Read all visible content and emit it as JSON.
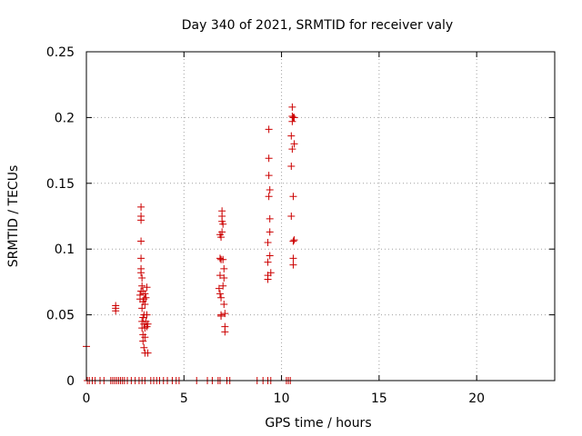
{
  "chart_data": {
    "type": "scatter",
    "title": "Day 340 of 2021, SRMTID for receiver valy",
    "xlabel": "GPS time / hours",
    "ylabel": "SRMTID / TECUs",
    "xlim": [
      0,
      24
    ],
    "ylim": [
      0,
      0.25
    ],
    "xticks": [
      0,
      5,
      10,
      15,
      20
    ],
    "xtick_labels": [
      "0",
      "5",
      "10",
      "15",
      "20"
    ],
    "yticks": [
      0,
      0.05,
      0.1,
      0.15,
      0.2,
      0.25
    ],
    "ytick_labels": [
      "0",
      "0.05",
      "0.1",
      "0.15",
      "0.2",
      "0.25"
    ],
    "grid": true,
    "marker": "+",
    "series": [
      {
        "name": "SRMTID",
        "color": "#cc0000",
        "x": [
          0.0,
          1.5,
          1.5,
          1.5,
          2.75,
          2.75,
          2.8,
          2.8,
          2.8,
          2.8,
          2.8,
          2.8,
          2.8,
          2.8,
          2.85,
          2.85,
          2.85,
          2.85,
          2.85,
          2.9,
          2.9,
          2.9,
          2.9,
          2.9,
          2.95,
          2.95,
          2.95,
          2.95,
          3.0,
          3.0,
          3.0,
          3.0,
          3.0,
          3.05,
          3.05,
          3.1,
          3.1,
          3.1,
          3.15,
          3.15,
          6.8,
          6.85,
          6.85,
          6.85,
          6.85,
          6.9,
          6.9,
          6.9,
          6.9,
          6.9,
          6.95,
          6.95,
          6.95,
          6.95,
          7.0,
          7.0,
          7.0,
          7.05,
          7.05,
          7.05,
          7.1,
          7.1,
          7.1,
          9.3,
          9.3,
          9.3,
          9.3,
          9.35,
          9.35,
          9.35,
          9.35,
          9.4,
          9.4,
          9.4,
          9.4,
          9.45,
          10.5,
          10.5,
          10.5,
          10.55,
          10.55,
          10.55,
          10.55,
          10.6,
          10.6,
          10.6,
          10.6,
          10.6,
          10.65,
          10.65,
          10.65,
          0.05,
          0.15,
          0.3,
          0.45,
          0.7,
          0.9,
          1.25,
          1.35,
          1.45,
          1.55,
          1.65,
          1.75,
          1.85,
          1.95,
          2.1,
          2.3,
          2.5,
          2.7,
          2.85,
          3.0,
          3.3,
          3.45,
          3.6,
          3.75,
          3.95,
          4.15,
          4.4,
          4.6,
          4.75,
          5.65,
          6.2,
          6.45,
          6.75,
          6.85,
          7.2,
          7.35,
          8.75,
          9.05,
          9.3,
          9.45,
          10.25,
          10.35,
          10.45
        ],
        "y": [
          0.026,
          0.053,
          0.055,
          0.057,
          0.062,
          0.065,
          0.132,
          0.125,
          0.122,
          0.106,
          0.093,
          0.085,
          0.082,
          0.068,
          0.078,
          0.072,
          0.055,
          0.045,
          0.04,
          0.068,
          0.06,
          0.048,
          0.035,
          0.03,
          0.062,
          0.05,
          0.043,
          0.025,
          0.066,
          0.058,
          0.04,
          0.033,
          0.021,
          0.063,
          0.045,
          0.071,
          0.05,
          0.041,
          0.043,
          0.021,
          0.07,
          0.111,
          0.093,
          0.08,
          0.066,
          0.109,
          0.092,
          0.063,
          0.05,
          0.049,
          0.129,
          0.125,
          0.121,
          0.113,
          0.119,
          0.092,
          0.072,
          0.085,
          0.078,
          0.058,
          0.051,
          0.041,
          0.037,
          0.105,
          0.09,
          0.08,
          0.077,
          0.191,
          0.169,
          0.156,
          0.14,
          0.145,
          0.123,
          0.113,
          0.095,
          0.082,
          0.186,
          0.163,
          0.125,
          0.208,
          0.201,
          0.197,
          0.176,
          0.2,
          0.14,
          0.106,
          0.093,
          0.088,
          0.2,
          0.18,
          0.107,
          0,
          0,
          0,
          0,
          0,
          0,
          0,
          0,
          0,
          0,
          0,
          0,
          0,
          0,
          0,
          0,
          0,
          0,
          0,
          0,
          0,
          0,
          0,
          0,
          0,
          0,
          0,
          0,
          0,
          0,
          0,
          0,
          0,
          0,
          0,
          0,
          0,
          0,
          0,
          0,
          0,
          0,
          0
        ]
      }
    ]
  }
}
